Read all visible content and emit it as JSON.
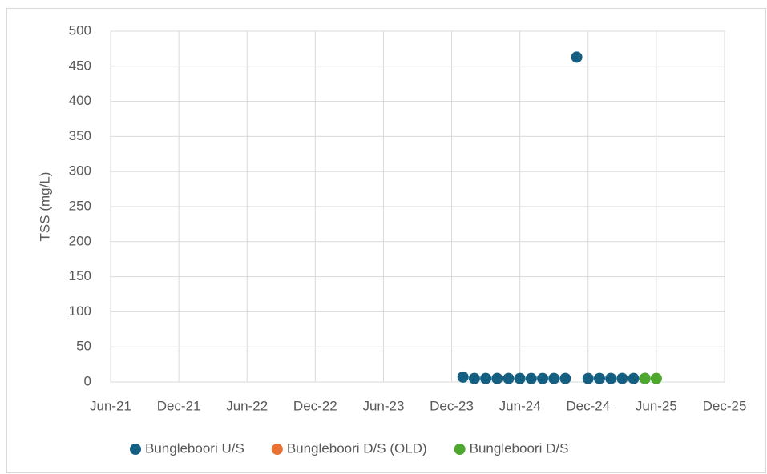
{
  "chart_data": {
    "type": "scatter",
    "y_label": "TSS (mg/L)",
    "ylim": [
      0,
      500
    ],
    "yticks": [
      0,
      50,
      100,
      150,
      200,
      250,
      300,
      350,
      400,
      450,
      500
    ],
    "xlim": [
      "2021-06",
      "2025-12"
    ],
    "xticks": [
      {
        "value": "2021-06",
        "label": "Jun-21"
      },
      {
        "value": "2021-12",
        "label": "Dec-21"
      },
      {
        "value": "2022-06",
        "label": "Jun-22"
      },
      {
        "value": "2022-12",
        "label": "Dec-22"
      },
      {
        "value": "2023-06",
        "label": "Jun-23"
      },
      {
        "value": "2023-12",
        "label": "Dec-23"
      },
      {
        "value": "2024-06",
        "label": "Jun-24"
      },
      {
        "value": "2024-12",
        "label": "Dec-24"
      },
      {
        "value": "2025-06",
        "label": "Jun-25"
      },
      {
        "value": "2025-12",
        "label": "Dec-25"
      }
    ],
    "grid": true,
    "legend": "bottom",
    "series": [
      {
        "name": "Bungleboori U/S",
        "color": "#156082",
        "x": [
          "2024-01",
          "2024-02",
          "2024-03",
          "2024-04",
          "2024-05",
          "2024-06",
          "2024-07",
          "2024-08",
          "2024-09",
          "2024-10",
          "2024-11",
          "2024-12",
          "2025-01",
          "2025-02",
          "2025-03",
          "2025-04",
          "2025-05"
        ],
        "values": [
          7,
          5,
          5,
          5,
          5,
          5,
          5,
          5,
          5,
          5,
          463,
          5,
          5,
          5,
          5,
          5,
          5
        ]
      },
      {
        "name": "Bungleboori D/S (OLD)",
        "color": "#e97132",
        "x": [],
        "values": []
      },
      {
        "name": "Bungleboori D/S",
        "color": "#4ea72e",
        "x": [
          "2025-05",
          "2025-06"
        ],
        "values": [
          5,
          5
        ]
      }
    ]
  }
}
